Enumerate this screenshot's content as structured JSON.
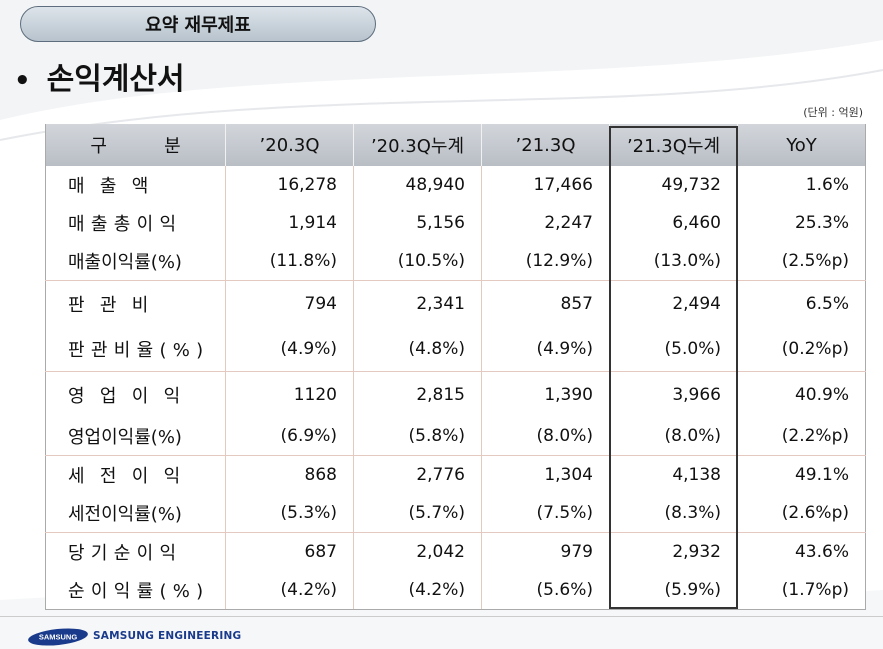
{
  "slide": {
    "title": "요약 재무제표",
    "section": "손익계산서",
    "bullet": "•",
    "unit_note": "(단위 : 억원)"
  },
  "table": {
    "columns": [
      "구          분",
      "’20.3Q",
      "’20.3Q누계",
      "’21.3Q",
      "’21.3Q누계",
      "YoY"
    ],
    "highlighted_column": "’21.3Q누계",
    "rows": [
      {
        "label": "매출액",
        "values": [
          "16,278",
          "48,940",
          "17,466",
          "49,732",
          "1.6%"
        ]
      },
      {
        "label": "매출총이익",
        "values": [
          "1,914",
          "5,156",
          "2,247",
          "6,460",
          "25.3%"
        ]
      },
      {
        "label": "매출이익률(%)",
        "values": [
          "(11.8%)",
          "(10.5%)",
          "(12.9%)",
          "(13.0%)",
          "(2.5%p)"
        ]
      },
      {
        "label": "판관비",
        "values": [
          "794",
          "2,341",
          "857",
          "2,494",
          "6.5%"
        ]
      },
      {
        "label": "판관비율(%)",
        "values": [
          "(4.9%)",
          "(4.8%)",
          "(4.9%)",
          "(5.0%)",
          "(0.2%p)"
        ]
      },
      {
        "label": "영업이익",
        "values": [
          "1120",
          "2,815",
          "1,390",
          "3,966",
          "40.9%"
        ]
      },
      {
        "label": "영업이익률(%)",
        "values": [
          "(6.9%)",
          "(5.8%)",
          "(8.0%)",
          "(8.0%)",
          "(2.2%p)"
        ]
      },
      {
        "label": "세전이익",
        "values": [
          "868",
          "2,776",
          "1,304",
          "4,138",
          "49.1%"
        ]
      },
      {
        "label": "세전이익률(%)",
        "values": [
          "(5.3%)",
          "(5.7%)",
          "(7.5%)",
          "(8.3%)",
          "(2.6%p)"
        ]
      },
      {
        "label": "당기순이익",
        "values": [
          "687",
          "2,042",
          "979",
          "2,932",
          "43.6%"
        ]
      },
      {
        "label": "순이익률(%)",
        "values": [
          "(4.2%)",
          "(4.2%)",
          "(5.6%)",
          "(5.9%)",
          "(1.7%p)"
        ]
      }
    ]
  },
  "footer": {
    "logo_word": "SAMSUNG",
    "company": "SAMSUNG ENGINEERING"
  },
  "colors": {
    "header_bg": "#c6cad0",
    "title_pill_border": "#5d6d7d",
    "group_divider": "#e4c9c0",
    "logo_blue": "#1a3b8c"
  }
}
